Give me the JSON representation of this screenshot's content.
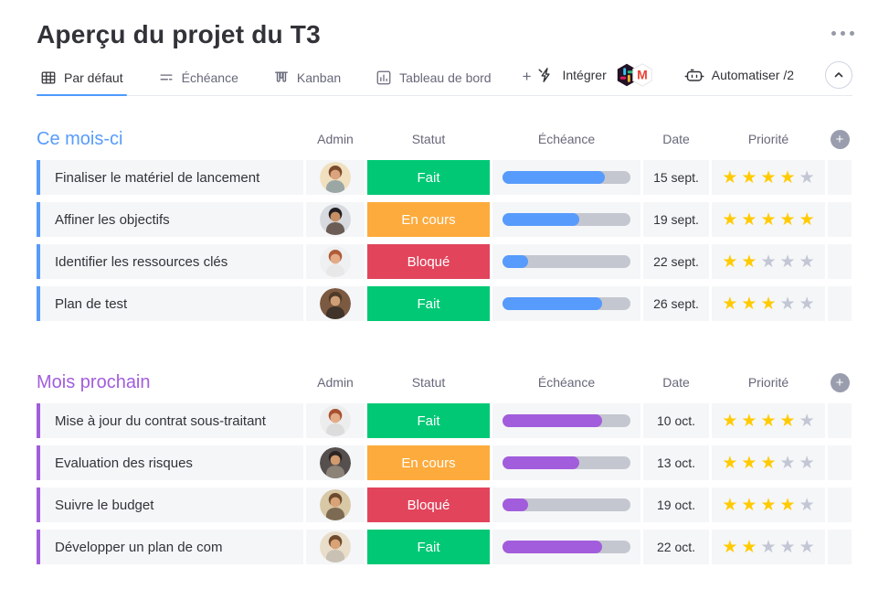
{
  "page": {
    "title": "Aperçu du projet du T3"
  },
  "tabs": {
    "items": [
      {
        "label": "Par défaut",
        "icon": "table-icon",
        "active": true
      },
      {
        "label": "Échéance",
        "icon": "sort-icon",
        "active": false
      },
      {
        "label": "Kanban",
        "icon": "kanban-icon",
        "active": false
      },
      {
        "label": "Tableau de bord",
        "icon": "chart-icon",
        "active": false
      }
    ],
    "add_label": "+"
  },
  "toolbar": {
    "integrate_label": "Intégrer",
    "integrations": [
      "slack",
      "gmail"
    ],
    "automate_label": "Automatiser /2"
  },
  "columns": {
    "admin": "Admin",
    "status": "Statut",
    "due": "Échéance",
    "date": "Date",
    "priority": "Priorité"
  },
  "icons": {
    "star": "★",
    "plus": "+"
  },
  "colors": {
    "accent_blue": "#4c9aff",
    "row_bg": "#f5f6f8",
    "progress_track": "#c5c7d0",
    "star_on": "#ffcb00",
    "star_off": "#c3c6d4",
    "status_done": "#00c875",
    "status_working": "#fdab3d",
    "status_blocked": "#e2445c"
  },
  "priority_max": 5,
  "groups": [
    {
      "title": "Ce mois-ci",
      "color": "#579bfc",
      "rows": [
        {
          "name": "Finaliser le matériel de lancement",
          "status": "Fait",
          "status_color": "#00c875",
          "progress": 80,
          "date": "15 sept.",
          "stars": 4,
          "avatar": {
            "bg": "#f1e0bf",
            "hair": "#7a4a2b",
            "skin": "#dba47e",
            "shirt": "#9aa7a4"
          }
        },
        {
          "name": "Affiner les objectifs",
          "status": "En cours",
          "status_color": "#fdab3d",
          "progress": 60,
          "date": "19 sept.",
          "stars": 5,
          "avatar": {
            "bg": "#d7dadf",
            "hair": "#241f22",
            "skin": "#c78f63",
            "shirt": "#6b5d55"
          }
        },
        {
          "name": "Identifier les ressources clés",
          "status": "Bloqué",
          "status_color": "#e2445c",
          "progress": 20,
          "date": "22 sept.",
          "stars": 2,
          "avatar": {
            "bg": "#eff0f1",
            "hair": "#b05c38",
            "skin": "#e3ab86",
            "shirt": "#e8e8e8"
          }
        },
        {
          "name": "Plan de test",
          "status": "Fait",
          "status_color": "#00c875",
          "progress": 78,
          "date": "26 sept.",
          "stars": 3,
          "avatar": {
            "bg": "#7c5a41",
            "hair": "#4f3a28",
            "skin": "#cfa077",
            "shirt": "#3f332a"
          }
        }
      ]
    },
    {
      "title": "Mois prochain",
      "color": "#a25ddc",
      "rows": [
        {
          "name": "Mise à jour du contrat sous-traitant",
          "status": "Fait",
          "status_color": "#00c875",
          "progress": 78,
          "date": "10 oct.",
          "stars": 4,
          "avatar": {
            "bg": "#ededee",
            "hair": "#a8512f",
            "skin": "#e3ab86",
            "shirt": "#dcdcdc"
          }
        },
        {
          "name": "Evaluation des risques",
          "status": "En cours",
          "status_color": "#fdab3d",
          "progress": 60,
          "date": "13 oct.",
          "stars": 3,
          "avatar": {
            "bg": "#55504e",
            "hair": "#2a2422",
            "skin": "#d19a6f",
            "shirt": "#8c8278"
          }
        },
        {
          "name": "Suivre le budget",
          "status": "Bloqué",
          "status_color": "#e2445c",
          "progress": 20,
          "date": "19 oct.",
          "stars": 4,
          "avatar": {
            "bg": "#d9c8a6",
            "hair": "#6b4a2e",
            "skin": "#d8a377",
            "shirt": "#7c6a52"
          }
        },
        {
          "name": "Développer un plan de com",
          "status": "Fait",
          "status_color": "#00c875",
          "progress": 78,
          "date": "22 oct.",
          "stars": 2,
          "avatar": {
            "bg": "#e9dec9",
            "hair": "#6f4a2c",
            "skin": "#d8a377",
            "shirt": "#c9c2b4"
          }
        }
      ]
    }
  ]
}
